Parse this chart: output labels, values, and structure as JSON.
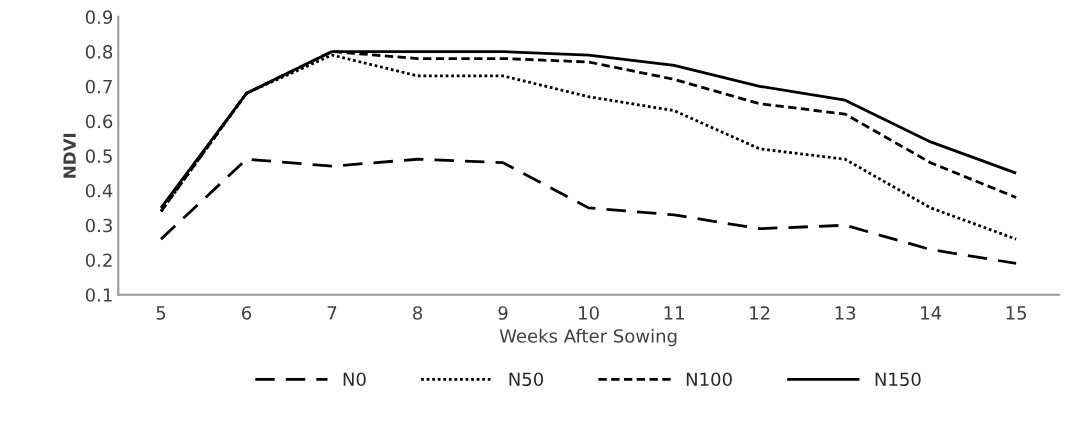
{
  "chart_data": {
    "type": "line",
    "xlabel": "Weeks After Sowing",
    "ylabel": "NDVI",
    "categories": [
      "5",
      "6",
      "7",
      "8",
      "9",
      "10",
      "11",
      "12",
      "13",
      "14",
      "15"
    ],
    "series": [
      {
        "name": "N0",
        "color": "#000000",
        "line_style": "longdash",
        "values": [
          0.26,
          0.49,
          0.47,
          0.49,
          0.48,
          0.35,
          0.33,
          0.29,
          0.3,
          0.23,
          0.19
        ]
      },
      {
        "name": "N50",
        "color": "#000000",
        "line_style": "dotted",
        "values": [
          0.34,
          0.68,
          0.79,
          0.73,
          0.73,
          0.67,
          0.63,
          0.52,
          0.49,
          0.35,
          0.26
        ]
      },
      {
        "name": "N100",
        "color": "#000000",
        "line_style": "dashed",
        "values": [
          0.34,
          0.68,
          0.8,
          0.78,
          0.78,
          0.77,
          0.72,
          0.65,
          0.62,
          0.48,
          0.38
        ]
      },
      {
        "name": "N150",
        "color": "#000000",
        "line_style": "solid",
        "values": [
          0.35,
          0.68,
          0.8,
          0.8,
          0.8,
          0.79,
          0.76,
          0.7,
          0.66,
          0.54,
          0.45
        ]
      }
    ],
    "ylim": [
      0.1,
      0.9
    ],
    "yticks": [
      0.1,
      0.2,
      0.3,
      0.4,
      0.5,
      0.6,
      0.7,
      0.8,
      0.9
    ],
    "grid": false,
    "legend": "bottom",
    "marker": "none"
  }
}
